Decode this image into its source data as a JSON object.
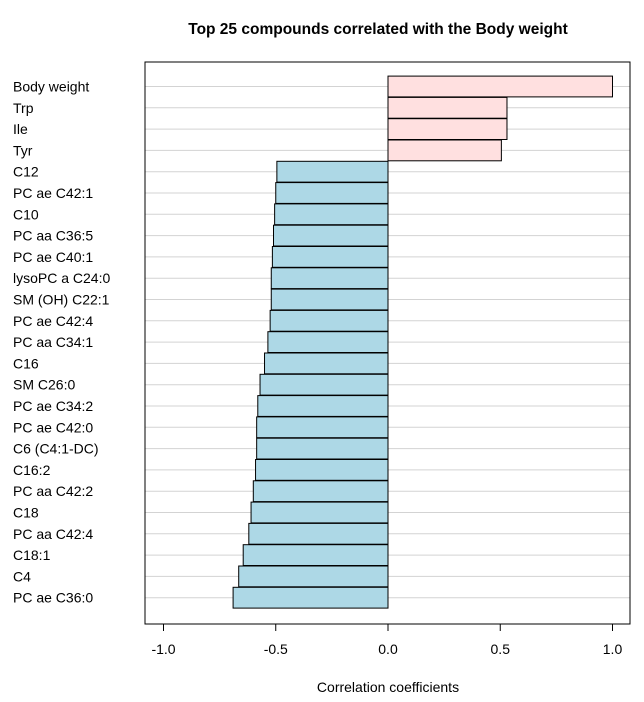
{
  "chart_data": {
    "type": "bar",
    "orientation": "horizontal",
    "title": "Top 25 compounds correlated with the Body weight",
    "xlabel": "Correlation coefficients",
    "ylabel": "",
    "xlim": [
      -1.1,
      1.0
    ],
    "xticks": [
      -1.0,
      -0.5,
      0.0,
      0.5,
      1.0
    ],
    "xtick_labels": [
      "-1.0",
      "-0.5",
      "0.0",
      "0.5",
      "1.0"
    ],
    "grid": "horizontal",
    "legend": "none",
    "colors": {
      "positive": "#ffe0e0",
      "negative": "#add8e6",
      "bar_stroke": "#000000",
      "grid": "#d3d3d3",
      "frame": "#000000"
    },
    "categories": [
      "Body weight",
      "Trp",
      "Ile",
      "Tyr",
      "C12",
      "PC ae C42:1",
      "C10",
      "PC aa C36:5",
      "PC ae C40:1",
      "lysoPC a C24:0",
      "SM (OH) C22:1",
      "PC ae C42:4",
      "PC aa C34:1",
      "C16",
      "SM C26:0",
      "PC ae C34:2",
      "PC ae C42:0",
      "C6 (C4:1-DC)",
      "C16:2",
      "PC aa C42:2",
      "C18",
      "PC aa C42:4",
      "C18:1",
      "C4",
      "PC ae C36:0"
    ],
    "values": [
      1.0,
      0.53,
      0.53,
      0.505,
      -0.495,
      -0.5,
      -0.505,
      -0.51,
      -0.515,
      -0.52,
      -0.52,
      -0.525,
      -0.535,
      -0.55,
      -0.57,
      -0.58,
      -0.585,
      -0.585,
      -0.59,
      -0.6,
      -0.61,
      -0.62,
      -0.645,
      -0.665,
      -0.69
    ]
  }
}
